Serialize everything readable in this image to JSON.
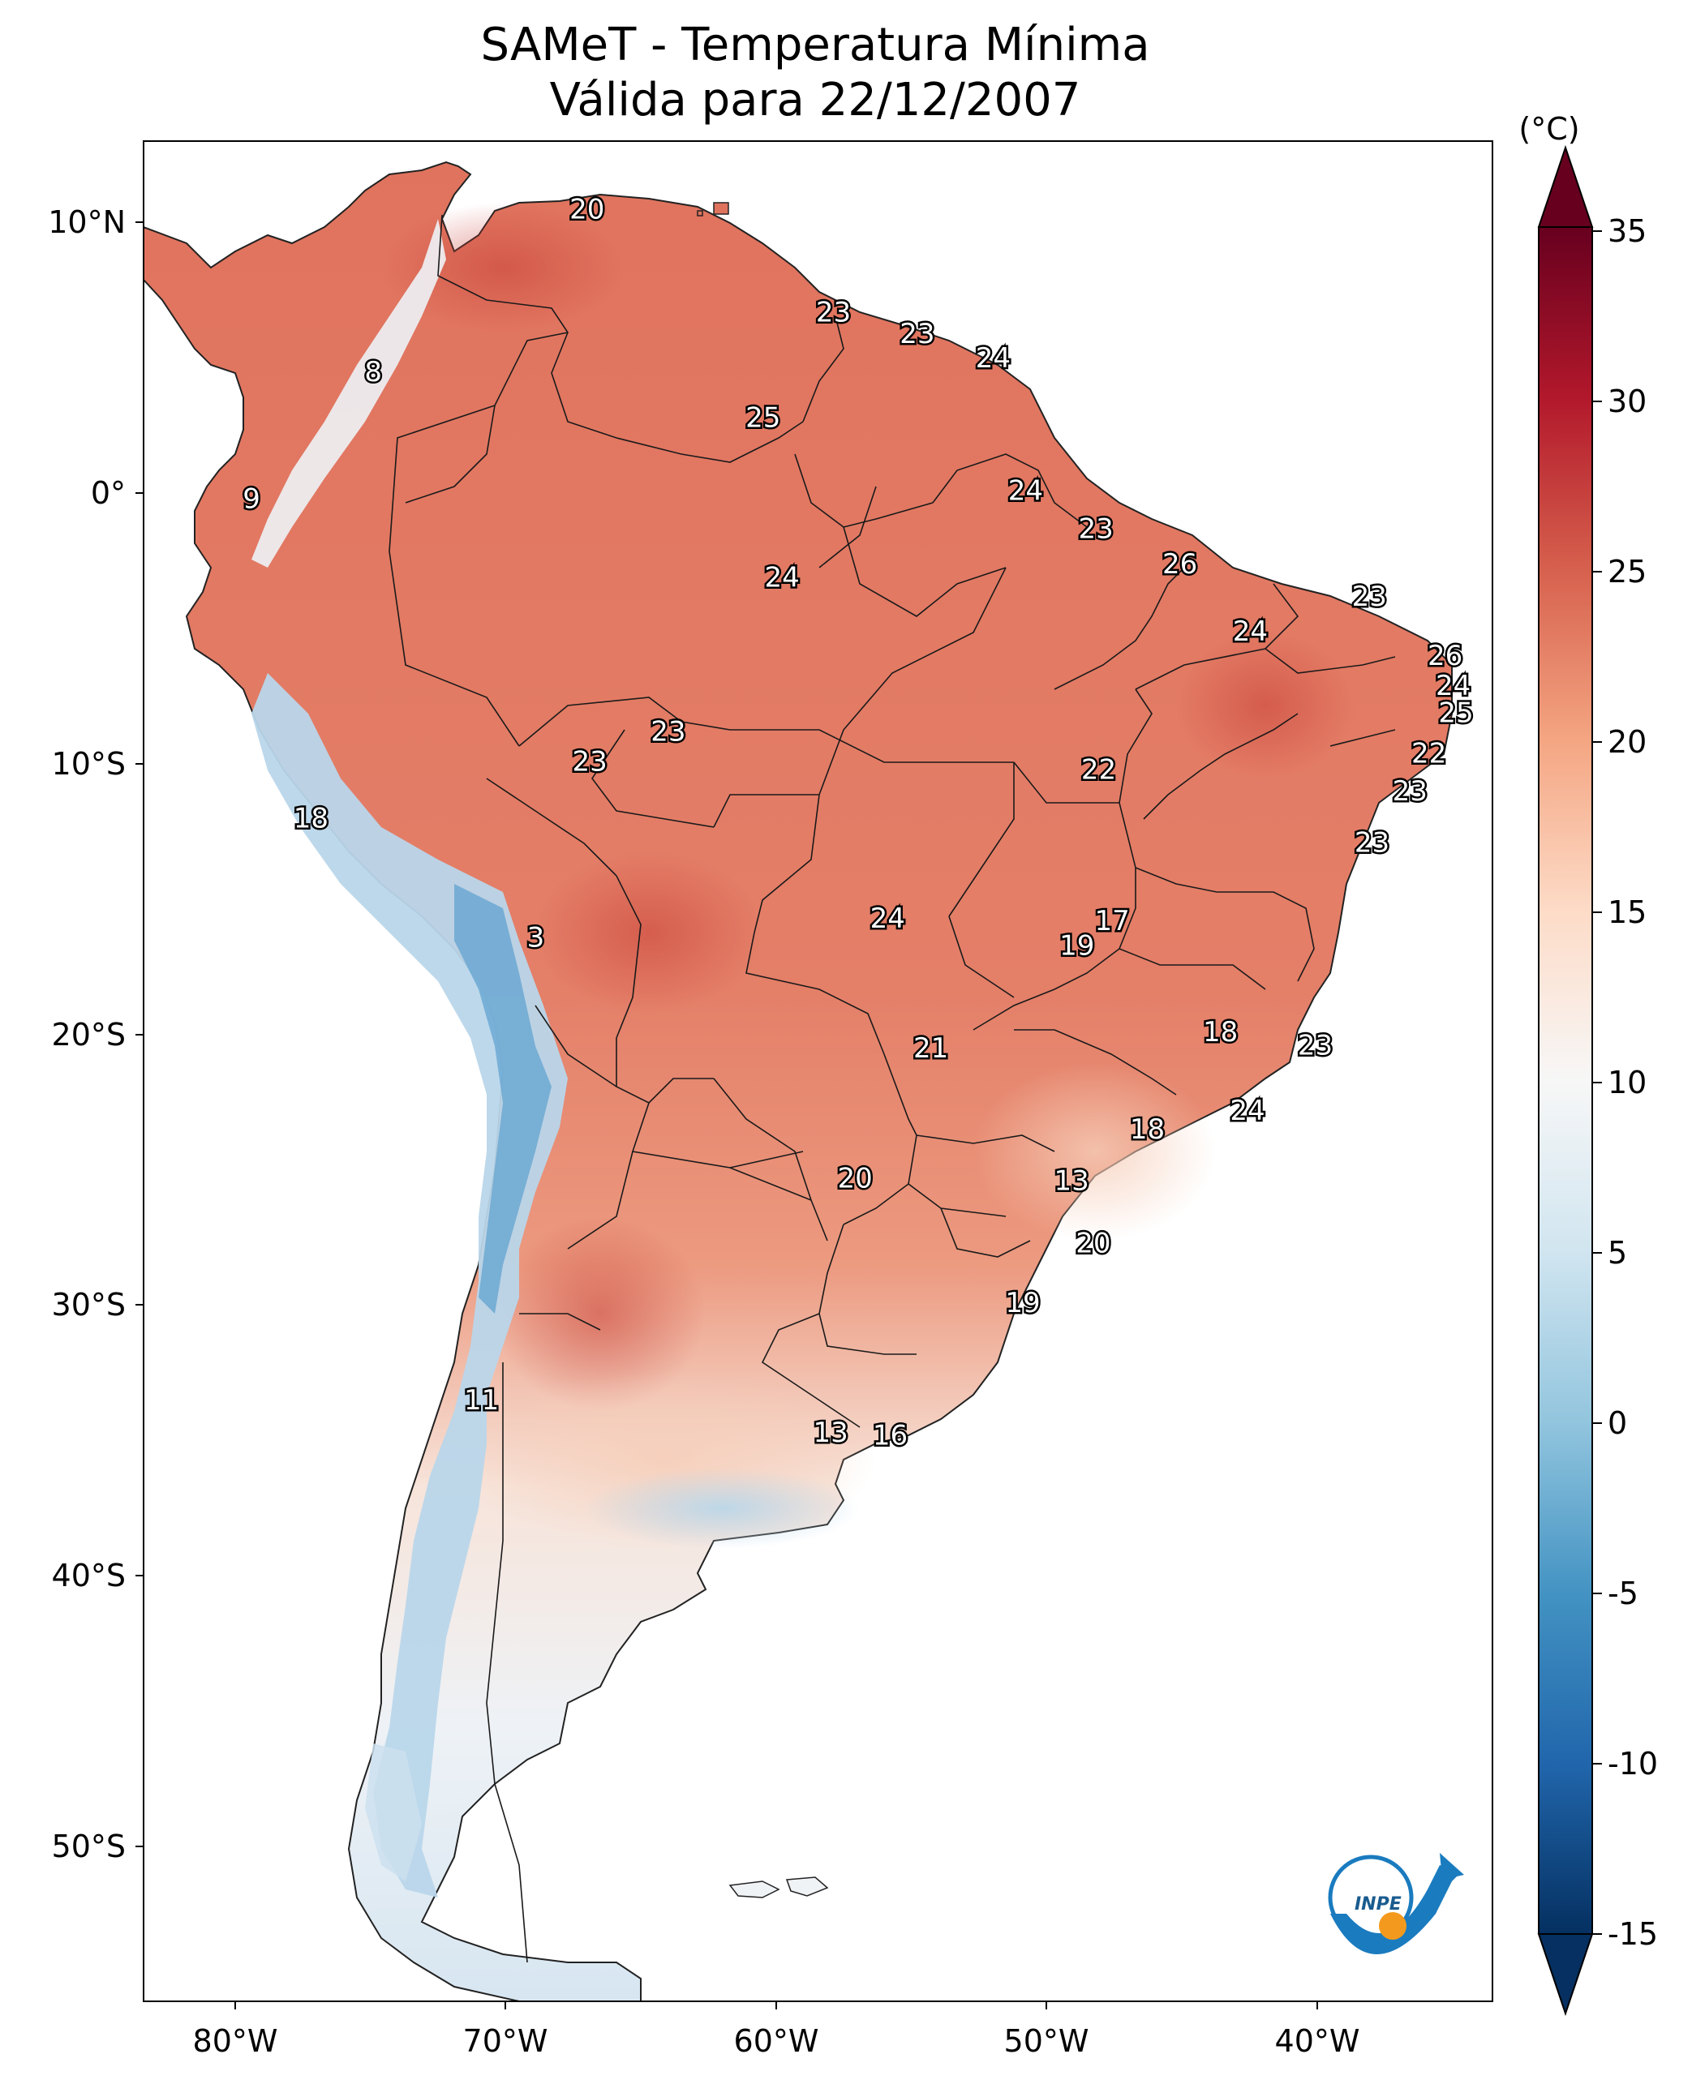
{
  "title": {
    "line1": "SAMeT - Temperatura Mínima",
    "line2": "Válida para 22/12/2007"
  },
  "colorbar": {
    "unit": "(°C)",
    "ticks": [
      "35",
      "30",
      "25",
      "20",
      "15",
      "10",
      "5",
      "0",
      "-5",
      "-10",
      "-15"
    ],
    "min": -15,
    "max": 35,
    "colors": [
      "#053061",
      "#2166ac",
      "#4393c3",
      "#92c5de",
      "#d1e5f0",
      "#f7f7f7",
      "#fddbc7",
      "#f4a582",
      "#d6604d",
      "#b2182b",
      "#67001f"
    ]
  },
  "axes": {
    "lat_ticks": [
      "10°N",
      "0°",
      "10°S",
      "20°S",
      "30°S",
      "40°S",
      "50°S"
    ],
    "lon_ticks": [
      "80°W",
      "70°W",
      "60°W",
      "50°W",
      "40°W"
    ]
  },
  "map_labels": [
    {
      "text": "20",
      "lon": -67.0,
      "lat": 10.5
    },
    {
      "text": "23",
      "lon": -57.9,
      "lat": 6.7
    },
    {
      "text": "23",
      "lon": -54.8,
      "lat": 5.9
    },
    {
      "text": "24",
      "lon": -52.0,
      "lat": 5.0
    },
    {
      "text": "8",
      "lon": -74.9,
      "lat": 4.5
    },
    {
      "text": "25",
      "lon": -60.5,
      "lat": 2.8
    },
    {
      "text": "9",
      "lon": -79.4,
      "lat": -0.2
    },
    {
      "text": "24",
      "lon": -50.8,
      "lat": 0.1
    },
    {
      "text": "23",
      "lon": -48.2,
      "lat": -1.3
    },
    {
      "text": "26",
      "lon": -45.1,
      "lat": -2.6
    },
    {
      "text": "24",
      "lon": -59.8,
      "lat": -3.1
    },
    {
      "text": "23",
      "lon": -38.1,
      "lat": -3.8
    },
    {
      "text": "24",
      "lon": -42.5,
      "lat": -5.1
    },
    {
      "text": "26",
      "lon": -35.3,
      "lat": -6.0
    },
    {
      "text": "24",
      "lon": -35.0,
      "lat": -7.1
    },
    {
      "text": "25",
      "lon": -34.9,
      "lat": -8.1
    },
    {
      "text": "23",
      "lon": -64.0,
      "lat": -8.8
    },
    {
      "text": "22",
      "lon": -35.9,
      "lat": -9.6
    },
    {
      "text": "23",
      "lon": -66.9,
      "lat": -9.9
    },
    {
      "text": "22",
      "lon": -48.1,
      "lat": -10.2
    },
    {
      "text": "23",
      "lon": -36.6,
      "lat": -11.0
    },
    {
      "text": "18",
      "lon": -77.2,
      "lat": -12.0
    },
    {
      "text": "23",
      "lon": -38.0,
      "lat": -12.9
    },
    {
      "text": "24",
      "lon": -55.9,
      "lat": -15.7
    },
    {
      "text": "17",
      "lon": -47.6,
      "lat": -15.8
    },
    {
      "text": "3",
      "lon": -68.9,
      "lat": -16.4
    },
    {
      "text": "19",
      "lon": -48.9,
      "lat": -16.7
    },
    {
      "text": "18",
      "lon": -43.6,
      "lat": -19.9
    },
    {
      "text": "23",
      "lon": -40.1,
      "lat": -20.4
    },
    {
      "text": "21",
      "lon": -54.3,
      "lat": -20.5
    },
    {
      "text": "24",
      "lon": -42.6,
      "lat": -22.8
    },
    {
      "text": "18",
      "lon": -46.3,
      "lat": -23.5
    },
    {
      "text": "20",
      "lon": -57.1,
      "lat": -25.3
    },
    {
      "text": "13",
      "lon": -49.1,
      "lat": -25.4
    },
    {
      "text": "20",
      "lon": -48.3,
      "lat": -27.7
    },
    {
      "text": "19",
      "lon": -50.9,
      "lat": -29.9
    },
    {
      "text": "11",
      "lon": -70.9,
      "lat": -33.5
    },
    {
      "text": "13",
      "lon": -58.0,
      "lat": -34.7
    },
    {
      "text": "16",
      "lon": -55.8,
      "lat": -34.8
    }
  ]
}
